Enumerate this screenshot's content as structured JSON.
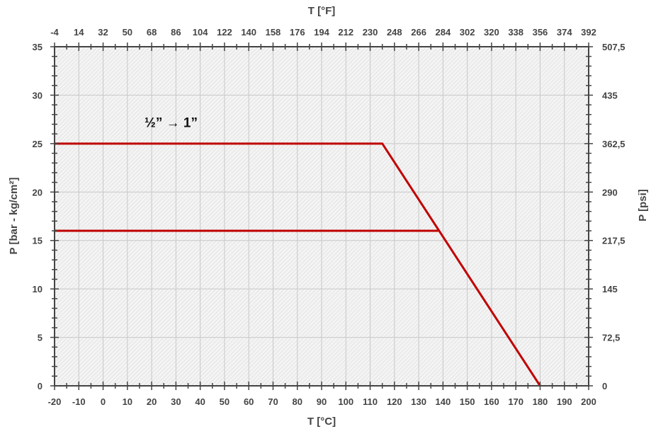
{
  "chart_data": {
    "type": "line",
    "x_axis_bottom": {
      "label": "T [°C]",
      "range": [
        -20,
        200
      ],
      "ticks": [
        "-20",
        "-10",
        "0",
        "10",
        "20",
        "30",
        "40",
        "50",
        "60",
        "70",
        "80",
        "90",
        "100",
        "110",
        "120",
        "130",
        "140",
        "150",
        "160",
        "170",
        "180",
        "190",
        "200"
      ]
    },
    "x_axis_top": {
      "label": "T [°F]",
      "ticks": [
        "-4",
        "14",
        "32",
        "50",
        "68",
        "86",
        "104",
        "122",
        "140",
        "158",
        "176",
        "194",
        "212",
        "230",
        "248",
        "266",
        "284",
        "302",
        "320",
        "338",
        "356",
        "374",
        "392"
      ]
    },
    "y_axis_left": {
      "label": "P [bar  -  kg/cm²]",
      "range": [
        0,
        35
      ],
      "ticks": [
        "0",
        "5",
        "10",
        "15",
        "20",
        "25",
        "30",
        "35"
      ]
    },
    "y_axis_right": {
      "label": "P [psi]",
      "ticks": [
        "0",
        "72,5",
        "145",
        "217,5",
        "290",
        "362,5",
        "435",
        "507,5"
      ]
    },
    "series": [
      {
        "x": [
          -20,
          115,
          180
        ],
        "y": [
          25,
          25,
          0
        ],
        "color": "#c00000"
      },
      {
        "x": [
          -20,
          138
        ],
        "y": [
          16,
          16
        ],
        "color": "#c00000"
      }
    ],
    "annotations": [
      {
        "text": "½” → 1”",
        "x": 28,
        "y": 26.7
      }
    ],
    "grid": true,
    "colors": {
      "line": "#c00000",
      "grid": "#c8c8c8",
      "axis": "#444444",
      "plot_background": "#efefef"
    }
  }
}
